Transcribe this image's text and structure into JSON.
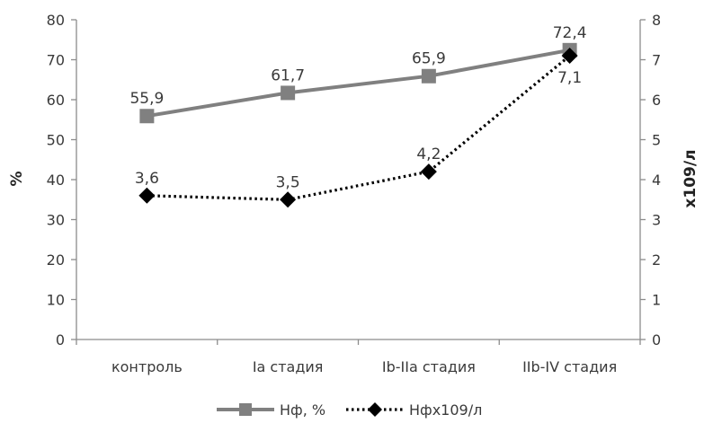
{
  "chart_data": {
    "type": "line",
    "categories": [
      "контроль",
      "Ia стадия",
      "Ib-IIa стадия",
      "IIb-IV стадия"
    ],
    "ylabel_left": "%",
    "ylabel_right": "x109/л",
    "ylim_left": [
      0,
      80
    ],
    "ylim_right": [
      0,
      8
    ],
    "yticks_left": [
      "0",
      "10",
      "20",
      "30",
      "40",
      "50",
      "60",
      "70",
      "80"
    ],
    "yticks_right": [
      "0",
      "1",
      "2",
      "3",
      "4",
      "5",
      "6",
      "7",
      "8"
    ],
    "series": [
      {
        "name": "Нф, %",
        "axis": "left",
        "values": [
          55.9,
          61.7,
          65.9,
          72.4
        ],
        "labels": [
          "55,9",
          "61,7",
          "65,9",
          "72,4"
        ],
        "color": "#808080",
        "marker": "square",
        "line": "solid"
      },
      {
        "name": "Нфх109/л",
        "axis": "right",
        "values": [
          3.6,
          3.5,
          4.2,
          7.1
        ],
        "labels": [
          "3,6",
          "3,5",
          "4,2",
          "7,1"
        ],
        "color": "#000000",
        "marker": "diamond",
        "line": "dotted"
      }
    ],
    "legend_position": "bottom",
    "grid": false
  }
}
